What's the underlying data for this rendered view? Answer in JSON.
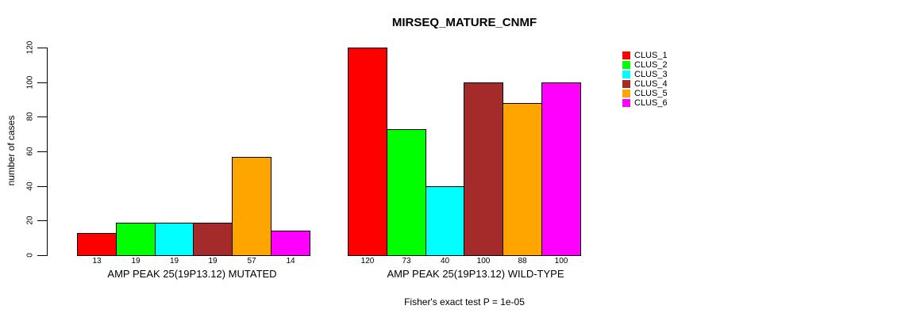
{
  "chart_data": {
    "type": "bar",
    "title": "MIRSEQ_MATURE_CNMF",
    "ylabel": "number of cases",
    "xlabel": "",
    "ylim": [
      0,
      120
    ],
    "yticks": [
      0,
      20,
      40,
      60,
      80,
      100,
      120
    ],
    "grid": false,
    "legend_position": "right",
    "annotation": "Fisher's exact test P = 1e-05",
    "clusters": [
      {
        "name": "CLUS_1",
        "color": "#FF0000"
      },
      {
        "name": "CLUS_2",
        "color": "#00FF00"
      },
      {
        "name": "CLUS_3",
        "color": "#00FFFF"
      },
      {
        "name": "CLUS_4",
        "color": "#A52A2A"
      },
      {
        "name": "CLUS_5",
        "color": "#FFA500"
      },
      {
        "name": "CLUS_6",
        "color": "#FF00FF"
      }
    ],
    "groups": [
      {
        "label": "AMP PEAK 25(19P13.12) MUTATED",
        "values": [
          13,
          19,
          19,
          19,
          57,
          14
        ]
      },
      {
        "label": "AMP PEAK 25(19P13.12) WILD-TYPE",
        "values": [
          120,
          73,
          40,
          100,
          88,
          100
        ]
      }
    ],
    "bar_value_labels_shown": true
  }
}
